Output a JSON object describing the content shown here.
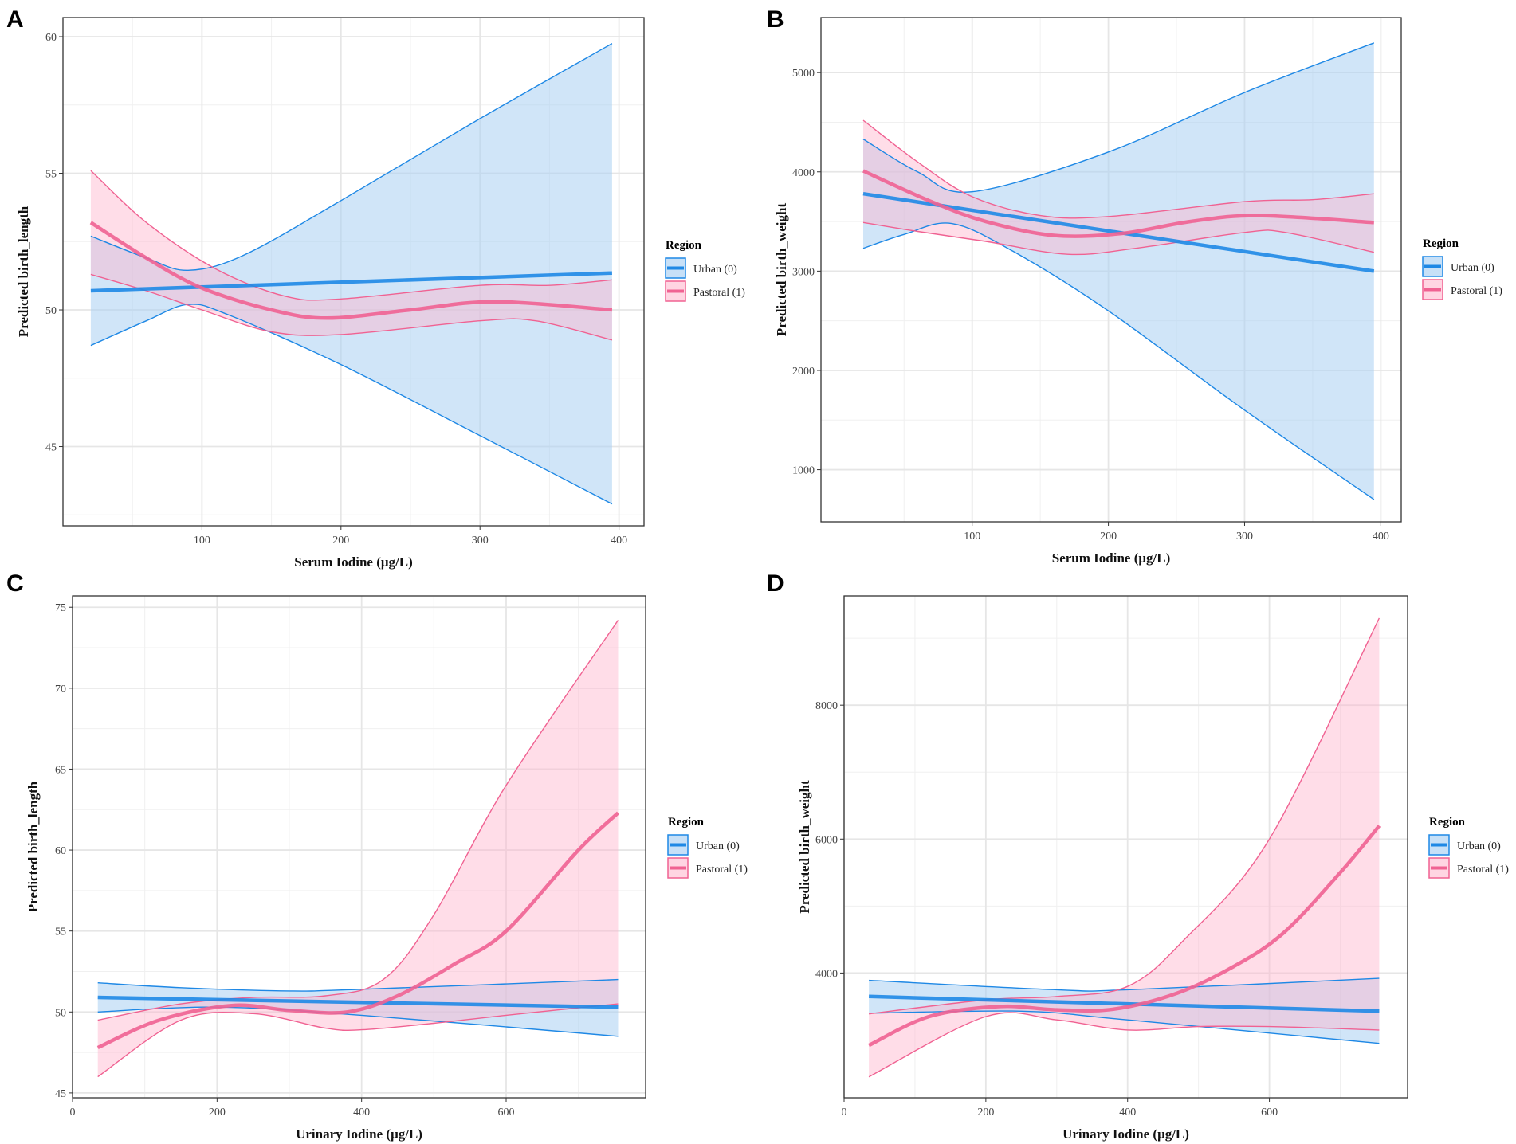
{
  "colors": {
    "urban": "#1E88E5",
    "urban_fill": "#A9D0F3",
    "pastoral": "#F06292",
    "pastoral_fill": "#FFB3CB"
  },
  "legend": {
    "title": "Region",
    "items": [
      "Urban (0)",
      "Pastoral (1)"
    ]
  },
  "chart_data": [
    {
      "type": "line",
      "panel": "A",
      "xlabel": "Serum Iodine (μg/L)",
      "ylabel": "Predicted birth_length",
      "xlim": [
        0,
        418
      ],
      "ylim": [
        42.1,
        60.7
      ],
      "xticks": [
        100,
        200,
        300,
        400
      ],
      "xminor": [
        50,
        150,
        250,
        350
      ],
      "yticks": [
        45,
        50,
        55,
        60
      ],
      "yminor": [
        42.5,
        47.5,
        52.5,
        57.5
      ],
      "series": [
        {
          "name": "Urban (0)",
          "fit": [
            [
              20,
              50.7
            ],
            [
              395,
              51.35
            ]
          ],
          "upper": [
            [
              20,
              52.7
            ],
            [
              60,
              51.9
            ],
            [
              90,
              51.45
            ],
            [
              130,
              52.0
            ],
            [
              200,
              54.0
            ],
            [
              300,
              57.0
            ],
            [
              395,
              59.75
            ]
          ],
          "lower": [
            [
              20,
              48.7
            ],
            [
              60,
              49.6
            ],
            [
              90,
              50.2
            ],
            [
              120,
              49.8
            ],
            [
              200,
              48.0
            ],
            [
              300,
              45.4
            ],
            [
              395,
              42.9
            ]
          ]
        },
        {
          "name": "Pastoral (1)",
          "fit": [
            [
              20,
              53.2
            ],
            [
              60,
              51.9
            ],
            [
              100,
              50.8
            ],
            [
              150,
              50.0
            ],
            [
              190,
              49.7
            ],
            [
              250,
              50.0
            ],
            [
              310,
              50.3
            ],
            [
              395,
              50.0
            ]
          ],
          "upper": [
            [
              20,
              55.1
            ],
            [
              60,
              53.2
            ],
            [
              110,
              51.5
            ],
            [
              160,
              50.5
            ],
            [
              200,
              50.4
            ],
            [
              300,
              50.9
            ],
            [
              350,
              50.9
            ],
            [
              395,
              51.1
            ]
          ],
          "lower": [
            [
              20,
              51.3
            ],
            [
              60,
              50.7
            ],
            [
              100,
              50.0
            ],
            [
              150,
              49.2
            ],
            [
              200,
              49.1
            ],
            [
              300,
              49.6
            ],
            [
              340,
              49.6
            ],
            [
              395,
              48.9
            ]
          ]
        }
      ]
    },
    {
      "type": "line",
      "panel": "B",
      "xlabel": "Serum Iodine (μg/L)",
      "ylabel": "Predicted birth_weight",
      "xlim": [
        -11,
        415
      ],
      "ylim": [
        475,
        5555
      ],
      "xticks": [
        100,
        200,
        300,
        400
      ],
      "xminor": [
        50,
        150,
        250,
        350
      ],
      "yticks": [
        1000,
        2000,
        3000,
        4000,
        5000
      ],
      "yminor": [
        1500,
        2500,
        3500,
        4500
      ],
      "series": [
        {
          "name": "Urban (0)",
          "fit": [
            [
              20,
              3780
            ],
            [
              395,
              3000
            ]
          ],
          "upper": [
            [
              20,
              4330
            ],
            [
              60,
              4000
            ],
            [
              100,
              3800
            ],
            [
              200,
              4200
            ],
            [
              300,
              4800
            ],
            [
              395,
              5300
            ]
          ],
          "lower": [
            [
              20,
              3230
            ],
            [
              50,
              3370
            ],
            [
              85,
              3480
            ],
            [
              130,
              3200
            ],
            [
              200,
              2600
            ],
            [
              300,
              1600
            ],
            [
              395,
              700
            ]
          ]
        },
        {
          "name": "Pastoral (1)",
          "fit": [
            [
              20,
              4010
            ],
            [
              70,
              3700
            ],
            [
              110,
              3500
            ],
            [
              160,
              3360
            ],
            [
              210,
              3380
            ],
            [
              260,
              3500
            ],
            [
              310,
              3560
            ],
            [
              395,
              3490
            ]
          ],
          "upper": [
            [
              20,
              4520
            ],
            [
              60,
              4100
            ],
            [
              100,
              3750
            ],
            [
              150,
              3560
            ],
            [
              200,
              3550
            ],
            [
              300,
              3700
            ],
            [
              350,
              3720
            ],
            [
              395,
              3780
            ]
          ],
          "lower": [
            [
              20,
              3490
            ],
            [
              60,
              3400
            ],
            [
              110,
              3300
            ],
            [
              170,
              3170
            ],
            [
              220,
              3230
            ],
            [
              300,
              3390
            ],
            [
              330,
              3390
            ],
            [
              395,
              3190
            ]
          ]
        }
      ]
    },
    {
      "type": "line",
      "panel": "C",
      "xlabel": "Urinary Iodine (μg/L)",
      "ylabel": "Predicted birth_length",
      "xlim": [
        0,
        793
      ],
      "ylim": [
        44.7,
        75.7
      ],
      "xticks": [
        0,
        200,
        400,
        600
      ],
      "xminor": [
        100,
        300,
        500,
        700
      ],
      "yticks": [
        45,
        50,
        55,
        60,
        65,
        70,
        75
      ],
      "yminor": [
        47.5,
        52.5,
        57.5,
        62.5,
        67.5,
        72.5
      ],
      "series": [
        {
          "name": "Urban (0)",
          "fit": [
            [
              35,
              50.9
            ],
            [
              755,
              50.3
            ]
          ],
          "upper": [
            [
              35,
              51.8
            ],
            [
              150,
              51.5
            ],
            [
              300,
              51.3
            ],
            [
              400,
              51.4
            ],
            [
              755,
              52.0
            ]
          ],
          "lower": [
            [
              35,
              50.0
            ],
            [
              200,
              50.3
            ],
            [
              400,
              49.8
            ],
            [
              755,
              48.5
            ]
          ]
        },
        {
          "name": "Pastoral (1)",
          "fit": [
            [
              35,
              47.8
            ],
            [
              120,
              49.5
            ],
            [
              220,
              50.4
            ],
            [
              300,
              50.1
            ],
            [
              380,
              50.0
            ],
            [
              450,
              51.0
            ],
            [
              530,
              53.0
            ],
            [
              600,
              55.0
            ],
            [
              700,
              60.0
            ],
            [
              755,
              62.3
            ]
          ],
          "upper": [
            [
              35,
              49.5
            ],
            [
              150,
              50.5
            ],
            [
              250,
              50.9
            ],
            [
              350,
              51.0
            ],
            [
              430,
              52.0
            ],
            [
              500,
              56.0
            ],
            [
              600,
              64.0
            ],
            [
              755,
              74.2
            ]
          ],
          "lower": [
            [
              35,
              46.0
            ],
            [
              150,
              49.5
            ],
            [
              250,
              49.9
            ],
            [
              350,
              49.0
            ],
            [
              400,
              48.9
            ],
            [
              500,
              49.3
            ],
            [
              600,
              49.8
            ],
            [
              755,
              50.5
            ]
          ]
        }
      ]
    },
    {
      "type": "line",
      "panel": "D",
      "xlabel": "Urinary Iodine (μg/L)",
      "ylabel": "Predicted birth_weight",
      "xlim": [
        0,
        795
      ],
      "ylim": [
        2137,
        9632
      ],
      "xticks": [
        0,
        200,
        400,
        600
      ],
      "xminor": [
        100,
        300,
        500,
        700
      ],
      "yticks": [
        4000,
        6000,
        8000
      ],
      "yminor": [
        3000,
        5000,
        7000,
        9000
      ],
      "series": [
        {
          "name": "Urban (0)",
          "fit": [
            [
              35,
              3650
            ],
            [
              755,
              3430
            ]
          ],
          "upper": [
            [
              35,
              3890
            ],
            [
              300,
              3750
            ],
            [
              400,
              3750
            ],
            [
              755,
              3920
            ]
          ],
          "lower": [
            [
              35,
              3400
            ],
            [
              250,
              3430
            ],
            [
              400,
              3300
            ],
            [
              755,
              2950
            ]
          ]
        },
        {
          "name": "Pastoral (1)",
          "fit": [
            [
              35,
              2920
            ],
            [
              120,
              3350
            ],
            [
              220,
              3500
            ],
            [
              300,
              3450
            ],
            [
              380,
              3460
            ],
            [
              470,
              3700
            ],
            [
              550,
              4100
            ],
            [
              620,
              4600
            ],
            [
              700,
              5500
            ],
            [
              755,
              6200
            ]
          ],
          "upper": [
            [
              35,
              3390
            ],
            [
              200,
              3600
            ],
            [
              300,
              3650
            ],
            [
              400,
              3800
            ],
            [
              480,
              4500
            ],
            [
              600,
              6000
            ],
            [
              755,
              9300
            ]
          ],
          "lower": [
            [
              35,
              2450
            ],
            [
              200,
              3350
            ],
            [
              300,
              3300
            ],
            [
              400,
              3150
            ],
            [
              500,
              3200
            ],
            [
              600,
              3200
            ],
            [
              755,
              3150
            ]
          ]
        }
      ]
    }
  ]
}
